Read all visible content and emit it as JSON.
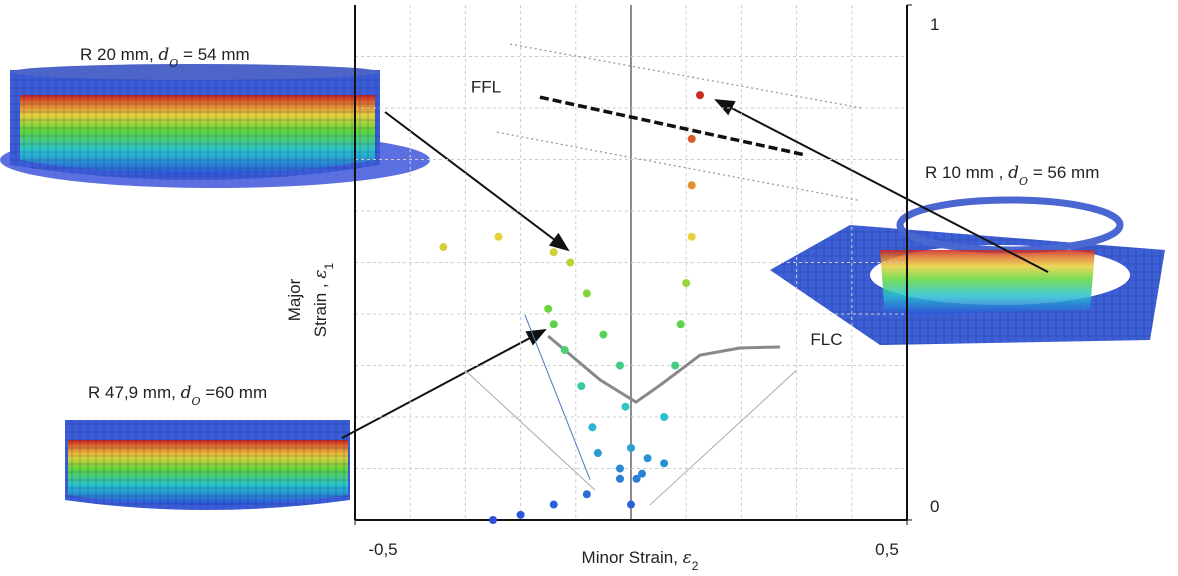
{
  "chart_data": {
    "type": "scatter",
    "xlim": [
      -0.5,
      0.5
    ],
    "ylim": [
      0,
      1
    ],
    "xticks": [
      {
        "value": -0.5,
        "label": "-0,5"
      },
      {
        "value": 0.5,
        "label": "0,5"
      }
    ],
    "yticks": [
      0,
      1
    ],
    "grid": true,
    "xgrid": [
      -0.4,
      -0.3,
      -0.2,
      -0.1,
      0,
      0.1,
      0.2,
      0.3,
      0.4
    ],
    "ygrid": [
      0.1,
      0.2,
      0.3,
      0.4,
      0.5,
      0.6,
      0.7,
      0.8,
      0.9
    ],
    "xlabel": [
      "Minor Strain, ",
      "ε",
      "2"
    ],
    "ylabel": [
      [
        "Major"
      ],
      [
        "Strain , ",
        "ε",
        "1"
      ]
    ],
    "series": [
      {
        "x": [
          -0.34,
          -0.24,
          -0.14,
          -0.11,
          -0.08,
          -0.05,
          -0.02,
          -0.01,
          0.0,
          0.01,
          0.0
        ],
        "values": [
          0.53,
          0.55,
          0.52,
          0.5,
          0.44,
          0.36,
          0.3,
          0.22,
          0.14,
          0.08,
          0.03
        ]
      },
      {
        "x": [
          0.125,
          0.11,
          0.11,
          0.11,
          0.1,
          0.09,
          0.08,
          0.06,
          0.03,
          -0.02,
          -0.08,
          -0.14,
          -0.2,
          -0.25
        ],
        "values": [
          0.825,
          0.74,
          0.65,
          0.55,
          0.46,
          0.38,
          0.3,
          0.2,
          0.12,
          0.08,
          0.05,
          0.03,
          0.01,
          0.0
        ]
      },
      {
        "x": [
          -0.15,
          -0.14,
          -0.12,
          -0.09,
          -0.07,
          -0.06,
          -0.02,
          0.02,
          0.06
        ],
        "values": [
          0.41,
          0.38,
          0.33,
          0.26,
          0.18,
          0.13,
          0.1,
          0.09,
          0.11
        ]
      }
    ],
    "lines": [
      {
        "x": [
          -0.165,
          0.315
        ],
        "values": [
          0.821,
          0.709
        ],
        "color": "#111",
        "style": "dashed"
      },
      {
        "x": [
          -0.219,
          0.418
        ],
        "values": [
          0.924,
          0.8
        ],
        "color": "#999",
        "style": "dotted"
      },
      {
        "x": [
          -0.243,
          0.411
        ],
        "values": [
          0.753,
          0.621
        ],
        "color": "#999",
        "style": "dotted"
      },
      {
        "x": [
          -0.15,
          -0.056,
          0.009,
          0.053,
          0.125,
          0.197,
          0.27
        ],
        "values": [
          0.357,
          0.272,
          0.229,
          0.262,
          0.32,
          0.334,
          0.336
        ],
        "color": "#888",
        "style": "solid"
      },
      {
        "x": [
          -0.301,
          -0.065
        ],
        "values": [
          0.291,
          0.058
        ],
        "color": "#aaa",
        "style": "thin"
      },
      {
        "x": [
          0.3,
          0.034
        ],
        "values": [
          0.291,
          0.029
        ],
        "color": "#aaa",
        "style": "thin"
      },
      {
        "x": [
          -0.192,
          -0.074
        ],
        "values": [
          0.398,
          0.078
        ],
        "color": "#4a78c0",
        "style": "thin"
      }
    ],
    "annotations": [
      {
        "text": [
          "FFL"
        ],
        "x": -0.29,
        "y": 0.83
      },
      {
        "text": [
          "FLC"
        ],
        "x": 0.325,
        "y": 0.34
      },
      {
        "text": [
          "R 20 mm, ",
          "d",
          "O",
          " = 54 mm"
        ]
      },
      {
        "text": [
          "R 10 mm , ",
          "d",
          "O",
          " = 56 mm"
        ]
      },
      {
        "text": [
          "R 47,9 mm, ",
          "d",
          "O",
          " =60 mm"
        ]
      }
    ]
  }
}
